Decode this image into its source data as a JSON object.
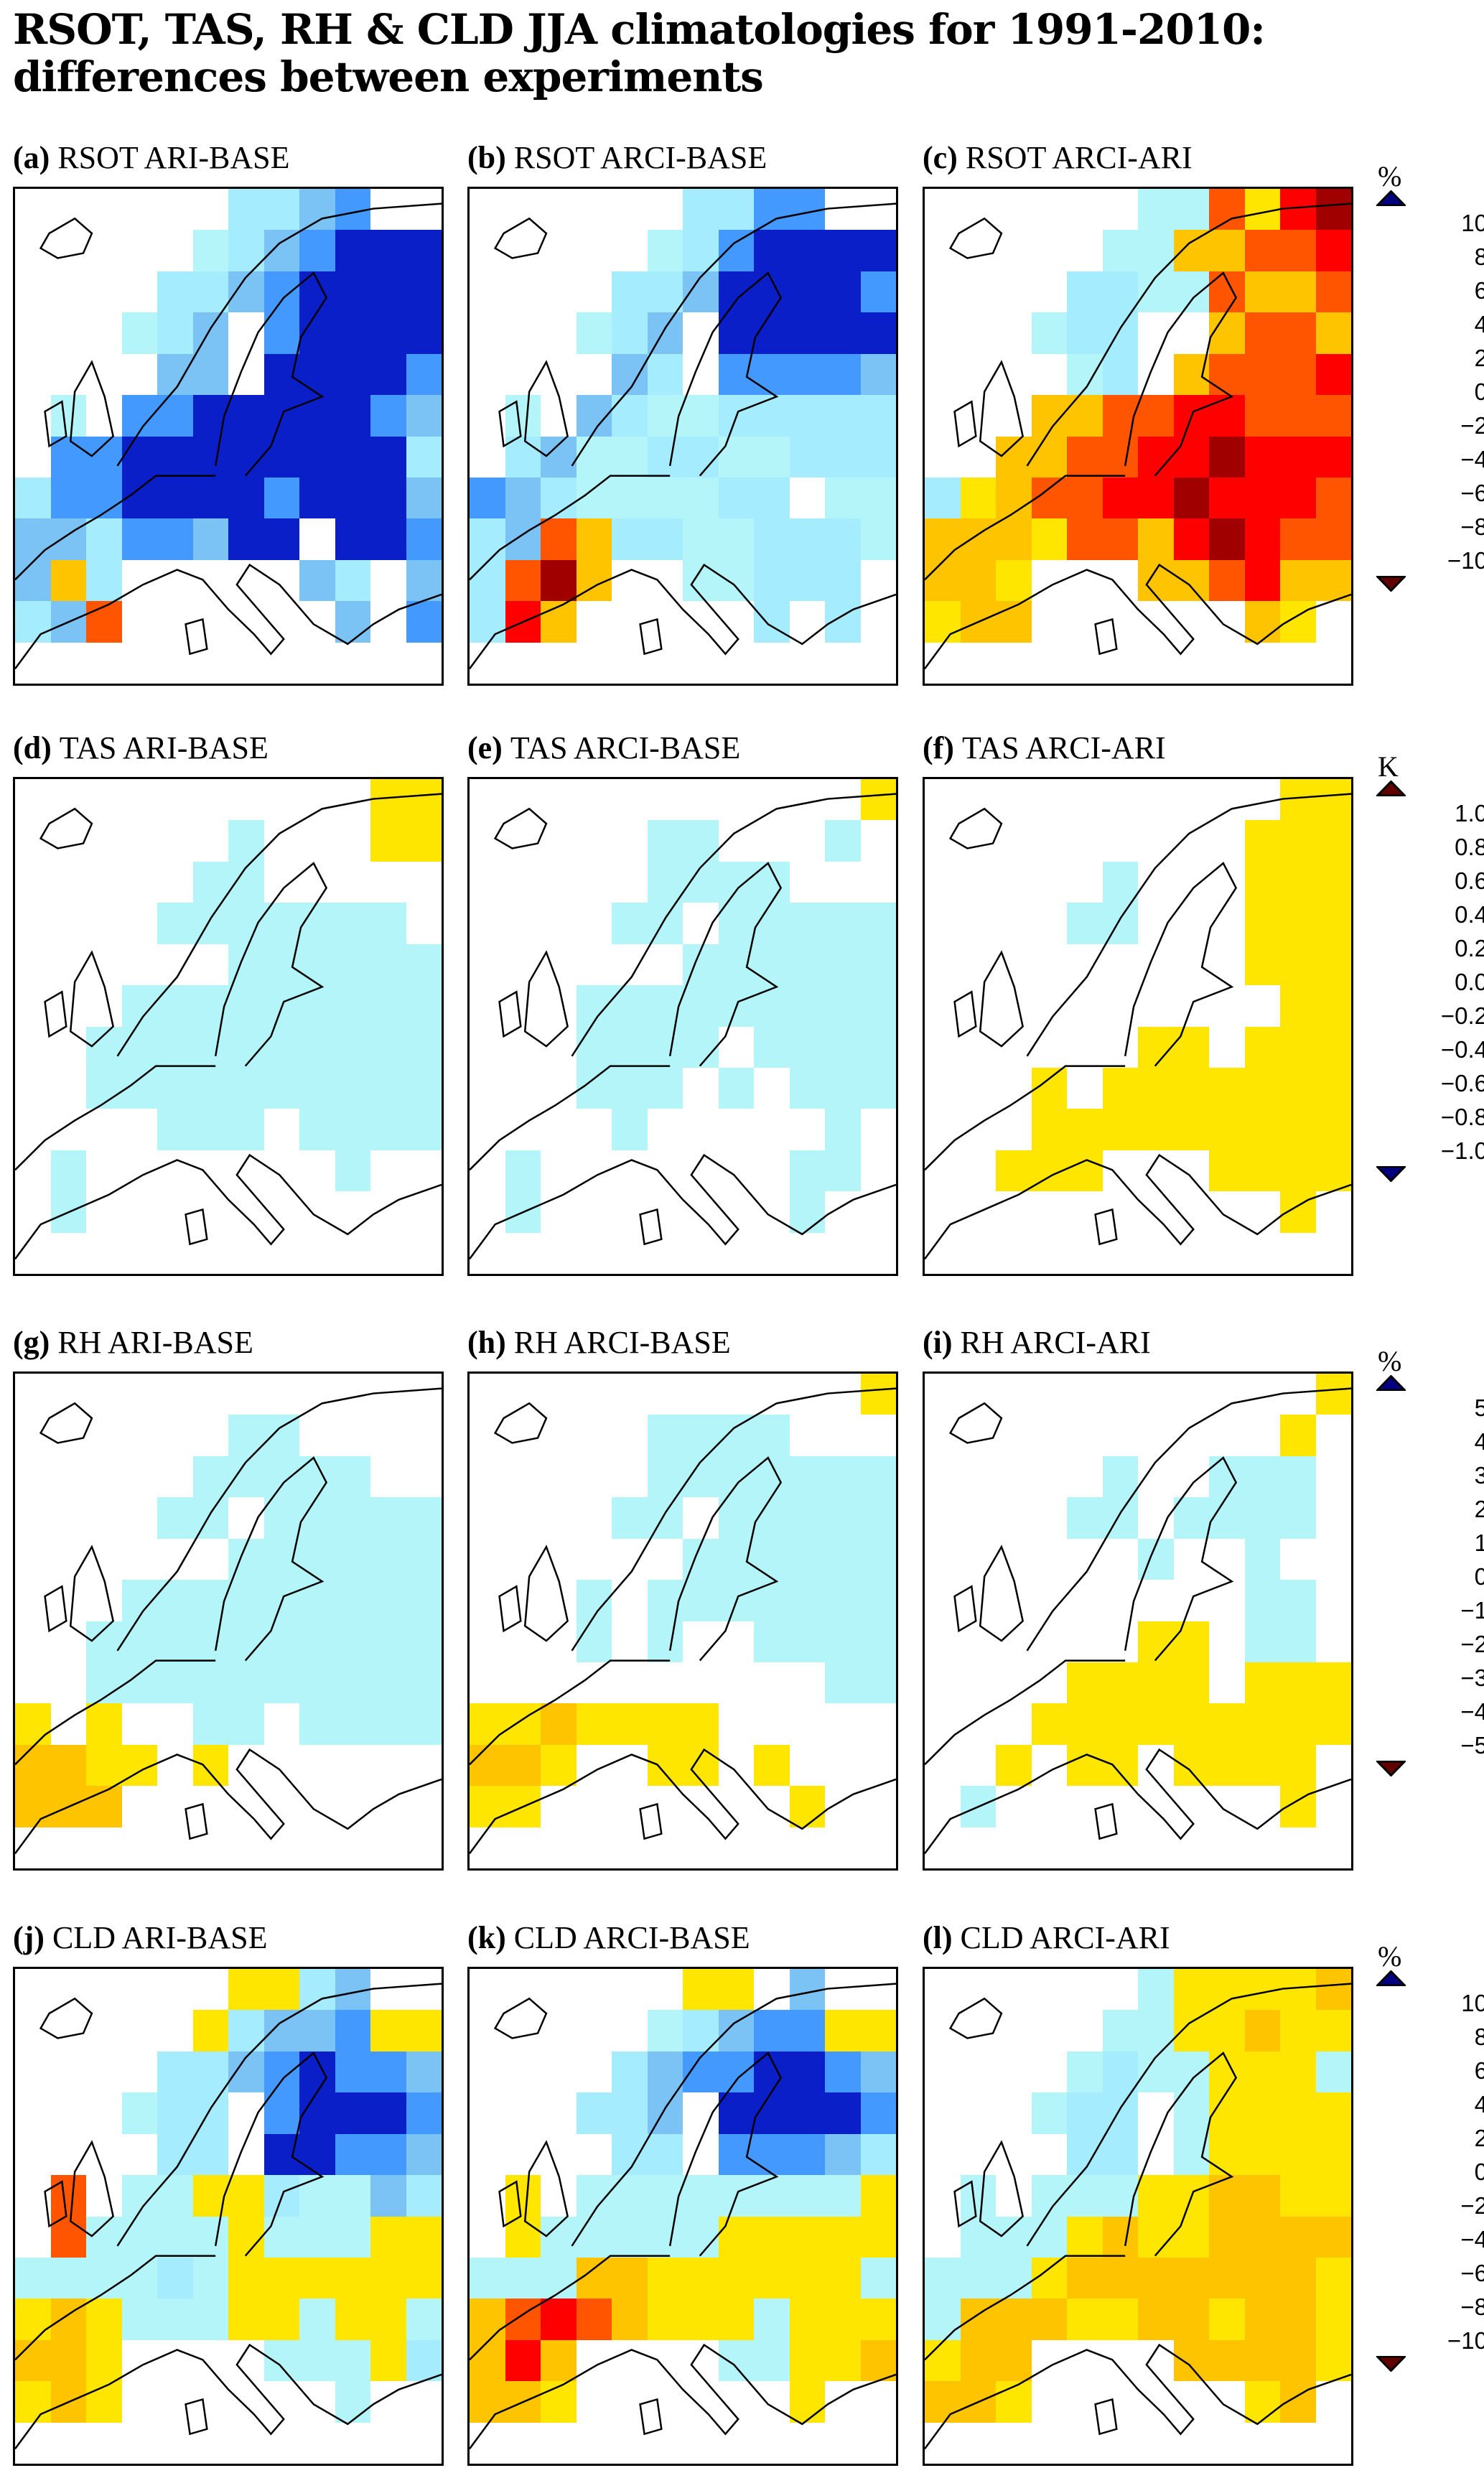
{
  "title_line1": "RSOT, TAS, RH & CLD JJA climatologies for 1991-2010:",
  "title_line2": "differences between experiments",
  "chart_data": {
    "type": "heatmap",
    "grid_note_codes": "a..k = colorbar band index from top to bottom; '.' = middle (zero) band",
    "scales": [
      {
        "unit": "%",
        "labels": [
          "10",
          "8",
          "6",
          "4",
          "2",
          "0",
          "−2",
          "−4",
          "−6",
          "−8",
          "−10"
        ],
        "colors": [
          "#0b1fc8",
          "#4499ff",
          "#7cc3f5",
          "#a5ecff",
          "#b4f5fa",
          "#ffffff",
          "#ffe600",
          "#ffc400",
          "#ff5500",
          "#ff0000",
          "#a00000"
        ],
        "tri_top": "#000080",
        "tri_bottom": "#600000"
      },
      {
        "unit": "K",
        "labels": [
          "1.0",
          "0.8",
          "0.6",
          "0.4",
          "0.2",
          "0.0",
          "−0.2",
          "−0.4",
          "−0.6",
          "−0.8",
          "−1.0"
        ],
        "colors": [
          "#a00000",
          "#ff0000",
          "#ff5500",
          "#ffc400",
          "#ffe600",
          "#ffffff",
          "#b4f5fa",
          "#a5ecff",
          "#7cc3f5",
          "#4499ff",
          "#0b1fc8"
        ],
        "tri_top": "#600000",
        "tri_bottom": "#000080"
      },
      {
        "unit": "%",
        "labels": [
          "5",
          "4",
          "3",
          "2",
          "1",
          "0",
          "−1",
          "−2",
          "−3",
          "−4",
          "−5"
        ],
        "colors": [
          "#0b1fc8",
          "#4499ff",
          "#7cc3f5",
          "#a5ecff",
          "#b4f5fa",
          "#ffffff",
          "#ffe600",
          "#ffc400",
          "#ff5500",
          "#ff0000",
          "#a00000"
        ],
        "tri_top": "#000080",
        "tri_bottom": "#600000"
      },
      {
        "unit": "%",
        "labels": [
          "10",
          "8",
          "6",
          "4",
          "2",
          "0",
          "−2",
          "−4",
          "−6",
          "−8",
          "−10"
        ],
        "colors": [
          "#0b1fc8",
          "#4499ff",
          "#7cc3f5",
          "#a5ecff",
          "#b4f5fa",
          "#ffffff",
          "#ffe600",
          "#ffc400",
          "#ff5500",
          "#ff0000",
          "#a00000"
        ],
        "tri_top": "#000080",
        "tri_bottom": "#600000"
      }
    ],
    "panels": [
      {
        "id": "(a)",
        "label": "RSOT ARI-BASE",
        "scale": 0,
        "grid": [
          "......ddcb..",
          ".....edcbaaa",
          "....ddcbaaaa",
          "...edc.baaaa",
          "....cc.aaaab",
          ".e.bbaaaaabc",
          ".bbaaaaaaaad",
          "dbbaaaabaaac",
          "ccdbbcaa.aab",
          "chd.....cd.c",
          "dci......c.b",
          "............"
        ]
      },
      {
        "id": "(b)",
        "label": "RSOT ARCI-BASE",
        "scale": 0,
        "grid": [
          "......ddbb..",
          ".....edbaaaa",
          "....ddcaaaab",
          "...edc.aaaaa",
          "....cd.bbbbc",
          ".e.cdeeddddd",
          ".dceeddeeddd",
          "bcdeeeedd.ee",
          "dcihddeeddde",
          "dikh..eeddd.",
          "djh.....d.d.",
          "............"
        ]
      },
      {
        "id": "(c)",
        "label": "RSOT ARCI-ARI",
        "scale": 0,
        "grid": [
          "......eeigjk",
          ".....eehhiij",
          "....ddeeihhi",
          "...edd.fhiih",
          "....ed.hiiij",
          ".f.hhiijjiii",
          "..hhiijjkjjj",
          "dghiijjkjjji",
          "hhhgiihjkjii",
          "hhg...hhijhh",
          "ghh......hg.",
          "............"
        ]
      },
      {
        "id": "(d)",
        "label": "TAS ARI-BASE",
        "scale": 1,
        "grid": [
          "..........ee",
          "......g...ee",
          ".....gg.....",
          "....ggggggg.",
          "......gggggg",
          "...ggggggggg",
          "..gggggggggg",
          "..gggggggggg",
          "....ggg.gggg",
          ".g.......g..",
          ".g..........",
          "............"
        ]
      },
      {
        "id": "(e)",
        "label": "TAS ARCI-BASE",
        "scale": 1,
        "grid": [
          "...........e",
          ".....gg...g.",
          ".....gggg...",
          "....gg.ggggg",
          "......gggggg",
          "...ggggggggg",
          "...gggg.gggg",
          "...ggg.g.ggg",
          "....g.....g.",
          ".g.......gg.",
          ".g.......g..",
          "............"
        ]
      },
      {
        "id": "(f)",
        "label": "TAS ARCI-ARI",
        "scale": 1,
        "grid": [
          "..........ee",
          ".........eee",
          ".....g...eee",
          "....gg...eee",
          ".........eee",
          "..........ee",
          "......ee.eee",
          "...e.eeeeeee",
          "...eeeeeeeee",
          "..eee...eeee",
          "..........e.",
          "............"
        ]
      },
      {
        "id": "(g)",
        "label": "RH ARI-BASE",
        "scale": 2,
        "grid": [
          "............",
          "......ee....",
          ".....eeeee..",
          "....ee.eeeee",
          "......eeeeee",
          "...eeeeeeeee",
          "..eeeeeeeeee",
          "..eeeeeeeeee",
          "g.g..ee.eeee",
          "hhgg.g......",
          "hhh.........",
          "............"
        ]
      },
      {
        "id": "(h)",
        "label": "RH ARCI-BASE",
        "scale": 2,
        "grid": [
          "...........g",
          ".....eeee...",
          ".....eeeeeee",
          "....ee.eeeee",
          "......eeeeee",
          "...e.eeeeeee",
          "...e.e..eeee",
          "..........ee",
          "gghgggg.....",
          "hhg..gg.g...",
          "gg.......g..",
          "............"
        ]
      },
      {
        "id": "(i)",
        "label": "RH ARCI-ARI",
        "scale": 2,
        "grid": [
          "...........g",
          "..........g.",
          ".....e..eee.",
          "....ee.eeee.",
          "......e..e..",
          ".........ee.",
          "......gg.ee.",
          "....gggg.ggg",
          "...ggggggggg",
          "..g.gg.gggg.",
          ".e........g.",
          "............"
        ]
      },
      {
        "id": "(j)",
        "label": "CLD ARI-BASE",
        "scale": 3,
        "grid": [
          "......ggdc..",
          ".....gdccbgg",
          "....ddcbabbc",
          "...edd.baaab",
          "....dd.aabbc",
          ".i.eeggdeecd",
          ".ieeeegeeegg",
          "eeeedegggggg",
          "ghgeeeggegge",
          "hhg....eeegd",
          "ghg......e..",
          "............"
        ]
      },
      {
        "id": "(k)",
        "label": "CLD ARCI-BASE",
        "scale": 3,
        "grid": [
          "......gg.c..",
          ".....edcbbgg",
          "....dcbbaabc",
          "...ddc.aaaab",
          "....dd.bbbcd",
          ".g.eeeeeeeeg",
          ".geeeeeggggg",
          "eeehhgggggge",
          "hijihgggeggg",
          "hjh....eeggh",
          "hhg......g..",
          "............"
        ]
      },
      {
        "id": "(l)",
        "label": "CLD ARCI-ARI",
        "scale": 3,
        "grid": [
          "......eggggh",
          ".....eegghgg",
          "....edeeggge",
          "...edd.egggg",
          "....dd.egggg",
          ".e.eeegghhgg",
          ".eeeghgghhhh",
          "eeeghhhhhhhg",
          "ehhhgghhghhg",
          "ghh....hhhhg",
          "hhg......gh.",
          "............"
        ]
      }
    ]
  }
}
